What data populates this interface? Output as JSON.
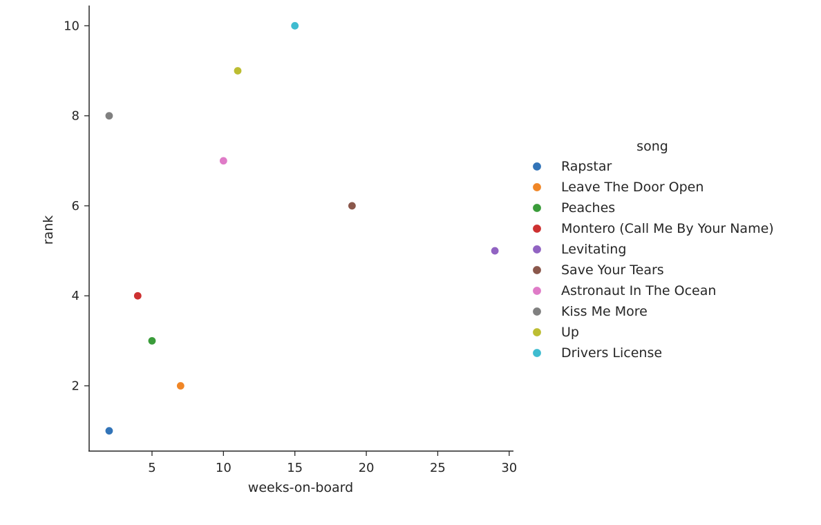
{
  "chart_data": {
    "type": "scatter",
    "xlabel": "weeks-on-board",
    "ylabel": "rank",
    "xlim": [
      0.6,
      30.3
    ],
    "ylim": [
      0.55,
      10.45
    ],
    "xticks": [
      5,
      10,
      15,
      20,
      25,
      30
    ],
    "yticks": [
      2,
      4,
      6,
      8,
      10
    ],
    "grid": false,
    "legend": {
      "title": "song",
      "placement": "right"
    },
    "series": [
      {
        "name": "Rapstar",
        "color": "#3274b8",
        "points": [
          {
            "x": 2,
            "y": 1
          }
        ]
      },
      {
        "name": "Leave The Door Open",
        "color": "#f08626",
        "points": [
          {
            "x": 7,
            "y": 2
          }
        ]
      },
      {
        "name": "Peaches",
        "color": "#3a9c3a",
        "points": [
          {
            "x": 5,
            "y": 3
          }
        ]
      },
      {
        "name": "Montero (Call Me By Your Name)",
        "color": "#cd3131",
        "points": [
          {
            "x": 4,
            "y": 4
          }
        ]
      },
      {
        "name": "Levitating",
        "color": "#9163c2",
        "points": [
          {
            "x": 29,
            "y": 5
          }
        ]
      },
      {
        "name": "Save Your Tears",
        "color": "#8a574b",
        "points": [
          {
            "x": 19,
            "y": 6
          }
        ]
      },
      {
        "name": "Astronaut In The Ocean",
        "color": "#df7bc7",
        "points": [
          {
            "x": 10,
            "y": 7
          }
        ]
      },
      {
        "name": "Kiss Me More",
        "color": "#808080",
        "points": [
          {
            "x": 2,
            "y": 8
          }
        ]
      },
      {
        "name": "Up",
        "color": "#bcbd32",
        "points": [
          {
            "x": 11,
            "y": 9
          }
        ]
      },
      {
        "name": "Drivers License",
        "color": "#3fbcd0",
        "points": [
          {
            "x": 15,
            "y": 10
          }
        ]
      }
    ]
  }
}
